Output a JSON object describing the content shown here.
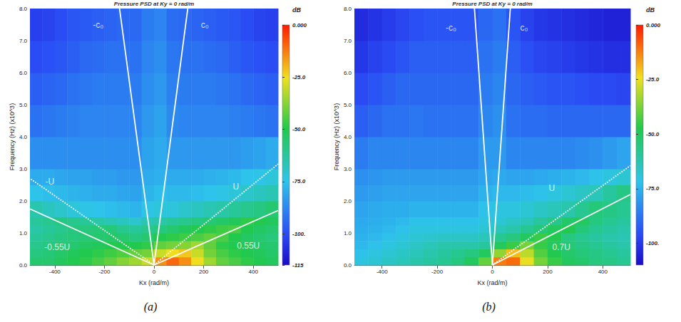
{
  "chart_data": [
    {
      "type": "heatmap",
      "title": "Pressure PSD at Ky = 0 rad/m",
      "caption": "(a)",
      "x_label": "Kx (rad/m)",
      "y_label": "Frequency (Hz) (x10^3)",
      "xlim": [
        -500,
        500
      ],
      "xticks": [
        -400,
        -200,
        0,
        200,
        400
      ],
      "ylim": [
        0,
        8
      ],
      "yticks": [
        {
          "value": 0,
          "label": "0.0"
        },
        {
          "value": 1,
          "label": "1.0"
        },
        {
          "value": 2,
          "label": "2.0"
        },
        {
          "value": 3,
          "label": "3.0"
        },
        {
          "value": 4,
          "label": "4.0"
        },
        {
          "value": 5,
          "label": "5.0"
        },
        {
          "value": 6,
          "label": "6.0"
        },
        {
          "value": 7,
          "label": "7.0"
        },
        {
          "value": 8,
          "label": "8.0"
        }
      ],
      "kx_bins": [
        -500,
        -450,
        -400,
        -350,
        -300,
        -250,
        -200,
        -150,
        -100,
        -50,
        0,
        50,
        100,
        150,
        200,
        250,
        300,
        350,
        400,
        450,
        500
      ],
      "freq_bins": [
        0,
        0.25,
        0.5,
        0.75,
        1,
        1.25,
        1.5,
        2,
        2.5,
        3,
        4,
        5,
        6,
        7,
        8
      ],
      "psd": [
        [
          -55,
          -55,
          -52,
          -50,
          -48,
          -45,
          -42,
          -38,
          -35,
          -30,
          -15,
          -10,
          -15,
          -25,
          -35,
          -42,
          -45,
          -48,
          -50,
          -52
        ],
        [
          -58,
          -56,
          -54,
          -52,
          -50,
          -48,
          -46,
          -44,
          -42,
          -40,
          -30,
          -25,
          -22,
          -30,
          -40,
          -45,
          -48,
          -50,
          -52,
          -54
        ],
        [
          -60,
          -58,
          -56,
          -55,
          -53,
          -52,
          -50,
          -50,
          -50,
          -48,
          -42,
          -40,
          -38,
          -35,
          -42,
          -48,
          -50,
          -52,
          -54,
          -55
        ],
        [
          -62,
          -60,
          -58,
          -57,
          -56,
          -55,
          -54,
          -55,
          -58,
          -55,
          -50,
          -48,
          -46,
          -45,
          -42,
          -45,
          -50,
          -53,
          -55,
          -57
        ],
        [
          -64,
          -62,
          -60,
          -58,
          -57,
          -56,
          -56,
          -60,
          -62,
          -60,
          -58,
          -55,
          -52,
          -50,
          -48,
          -46,
          -45,
          -50,
          -53,
          -55
        ],
        [
          -62,
          -60,
          -58,
          -60,
          -62,
          -64,
          -66,
          -68,
          -70,
          -66,
          -64,
          -62,
          -60,
          -58,
          -56,
          -54,
          -52,
          -48,
          -50,
          -52
        ],
        [
          -65,
          -68,
          -70,
          -72,
          -74,
          -75,
          -76,
          -77,
          -78,
          -74,
          -72,
          -72,
          -70,
          -68,
          -66,
          -64,
          -62,
          -60,
          -58,
          -55
        ],
        [
          -75,
          -76,
          -77,
          -78,
          -79,
          -80,
          -80,
          -81,
          -82,
          -78,
          -76,
          -77,
          -77,
          -76,
          -75,
          -74,
          -72,
          -70,
          -68,
          -66
        ],
        [
          -80,
          -80,
          -81,
          -82,
          -82,
          -83,
          -83,
          -84,
          -84,
          -80,
          -79,
          -80,
          -80,
          -80,
          -79,
          -78,
          -77,
          -75,
          -74,
          -72
        ],
        [
          -86,
          -86,
          -86,
          -86,
          -86,
          -86,
          -86,
          -86,
          -86,
          -82,
          -80,
          -84,
          -84,
          -84,
          -84,
          -84,
          -84,
          -83,
          -82,
          -80
        ],
        [
          -92,
          -91,
          -90,
          -89,
          -88,
          -88,
          -88,
          -88,
          -88,
          -84,
          -82,
          -87,
          -88,
          -88,
          -88,
          -88,
          -89,
          -90,
          -91,
          -92
        ],
        [
          -96,
          -95,
          -94,
          -92,
          -91,
          -90,
          -90,
          -90,
          -90,
          -86,
          -84,
          -89,
          -90,
          -90,
          -90,
          -91,
          -92,
          -94,
          -95,
          -96
        ],
        [
          -100,
          -99,
          -98,
          -96,
          -94,
          -93,
          -92,
          -92,
          -92,
          -88,
          -86,
          -91,
          -92,
          -92,
          -93,
          -94,
          -96,
          -98,
          -99,
          -100
        ],
        [
          -103,
          -102,
          -100,
          -98,
          -97,
          -96,
          -95,
          -94,
          -94,
          -90,
          -88,
          -93,
          -94,
          -95,
          -96,
          -97,
          -98,
          -100,
          -102,
          -103
        ]
      ],
      "colorbar": {
        "title": "dB",
        "range": [
          -115,
          0
        ],
        "ticks": [
          {
            "value": 0,
            "label": "0.000"
          },
          {
            "value": -25,
            "label": "-25.0"
          },
          {
            "value": -50,
            "label": "-50.0"
          },
          {
            "value": -75,
            "label": "-75.0"
          },
          {
            "value": -100,
            "label": "-100."
          },
          -115
        ]
      },
      "series": [
        {
          "name": "-c₀",
          "type": "line",
          "color": "#ffffff",
          "line_style": "solid",
          "x": [
            0,
            -139
          ],
          "values": [
            0,
            8
          ],
          "label_position": [
            -225,
            7.5
          ]
        },
        {
          "name": "c₀",
          "type": "line",
          "color": "#ffffff",
          "line_style": "solid",
          "x": [
            0,
            136
          ],
          "values": [
            0,
            8
          ],
          "label_position": [
            205,
            7.5
          ]
        },
        {
          "name": "-U",
          "type": "line",
          "color": "#ffffff",
          "line_style": "dotted",
          "x": [
            0,
            -500
          ],
          "values": [
            0,
            2.7
          ],
          "label_position": [
            -420,
            2.6
          ]
        },
        {
          "name": "U",
          "type": "line",
          "color": "#ffffff",
          "line_style": "dotted",
          "x": [
            0,
            500
          ],
          "values": [
            0,
            3.15
          ],
          "label_position": [
            330,
            2.45
          ]
        },
        {
          "name": "-0.55U",
          "type": "line",
          "color": "#ffffff",
          "line_style": "solid",
          "x": [
            0,
            -500
          ],
          "values": [
            0,
            1.75
          ],
          "label_position": [
            -390,
            0.55
          ]
        },
        {
          "name": "0.55U",
          "type": "line",
          "color": "#ffffff",
          "line_style": "solid",
          "x": [
            0,
            500
          ],
          "values": [
            0,
            1.7
          ],
          "label_position": [
            380,
            0.6
          ]
        }
      ]
    },
    {
      "type": "heatmap",
      "title": "Pressure PSD at Ky = 0 rad/m",
      "caption": "(b)",
      "x_label": "Kx (rad/m)",
      "y_label": "Frequency (Hz) (x10^3)",
      "xlim": [
        -500,
        500
      ],
      "xticks": [
        -400,
        -200,
        0,
        200,
        400
      ],
      "ylim": [
        0,
        8
      ],
      "yticks": [
        {
          "value": 0,
          "label": "0.0"
        },
        {
          "value": 1,
          "label": "1.0"
        },
        {
          "value": 2,
          "label": "2.0"
        },
        {
          "value": 3,
          "label": "3.0"
        },
        {
          "value": 4,
          "label": "4.0"
        },
        {
          "value": 5,
          "label": "5.0"
        },
        {
          "value": 6,
          "label": "6.0"
        },
        {
          "value": 7,
          "label": "7.0"
        },
        {
          "value": 8,
          "label": "8.0"
        }
      ],
      "kx_bins": [
        -500,
        -450,
        -400,
        -350,
        -300,
        -250,
        -200,
        -150,
        -100,
        -50,
        0,
        50,
        100,
        150,
        200,
        250,
        300,
        350,
        400,
        450,
        500
      ],
      "freq_bins": [
        0,
        0.25,
        0.5,
        0.75,
        1,
        1.25,
        1.5,
        2,
        2.5,
        3,
        4,
        5,
        6,
        7,
        8
      ],
      "psd": [
        [
          -70,
          -68,
          -66,
          -64,
          -62,
          -60,
          -58,
          -55,
          -50,
          -40,
          -12,
          -10,
          -25,
          -38,
          -45,
          -50,
          -52,
          -55,
          -56,
          -58
        ],
        [
          -72,
          -70,
          -68,
          -66,
          -64,
          -62,
          -60,
          -58,
          -55,
          -50,
          -35,
          -20,
          -30,
          -42,
          -48,
          -52,
          -54,
          -56,
          -58,
          -60
        ],
        [
          -74,
          -72,
          -70,
          -68,
          -66,
          -64,
          -62,
          -62,
          -62,
          -60,
          -50,
          -45,
          -38,
          -45,
          -50,
          -54,
          -56,
          -58,
          -60,
          -62
        ],
        [
          -75,
          -74,
          -72,
          -70,
          -68,
          -67,
          -66,
          -66,
          -66,
          -64,
          -58,
          -55,
          -50,
          -45,
          -48,
          -55,
          -58,
          -60,
          -62,
          -63
        ],
        [
          -76,
          -75,
          -74,
          -72,
          -70,
          -70,
          -70,
          -70,
          -70,
          -68,
          -64,
          -62,
          -58,
          -54,
          -50,
          -48,
          -54,
          -58,
          -60,
          -62
        ],
        [
          -77,
          -76,
          -75,
          -74,
          -72,
          -72,
          -72,
          -72,
          -72,
          -70,
          -68,
          -66,
          -64,
          -60,
          -57,
          -52,
          -50,
          -55,
          -58,
          -60
        ],
        [
          -78,
          -77,
          -76,
          -76,
          -75,
          -75,
          -75,
          -75,
          -75,
          -72,
          -70,
          -70,
          -68,
          -66,
          -64,
          -62,
          -58,
          -54,
          -56,
          -58
        ],
        [
          -80,
          -79,
          -78,
          -78,
          -78,
          -78,
          -78,
          -78,
          -78,
          -75,
          -74,
          -74,
          -73,
          -72,
          -70,
          -68,
          -66,
          -64,
          -60,
          -56
        ],
        [
          -82,
          -81,
          -80,
          -80,
          -80,
          -80,
          -80,
          -80,
          -80,
          -78,
          -77,
          -78,
          -78,
          -77,
          -76,
          -75,
          -74,
          -72,
          -70,
          -68
        ],
        [
          -86,
          -84,
          -84,
          -84,
          -84,
          -84,
          -84,
          -84,
          -84,
          -80,
          -80,
          -84,
          -84,
          -84,
          -84,
          -84,
          -83,
          -82,
          -80,
          -78
        ],
        [
          -92,
          -90,
          -88,
          -88,
          -87,
          -88,
          -88,
          -88,
          -88,
          -84,
          -82,
          -88,
          -89,
          -89,
          -90,
          -90,
          -90,
          -90,
          -90,
          -90
        ],
        [
          -96,
          -94,
          -92,
          -90,
          -90,
          -90,
          -90,
          -90,
          -90,
          -86,
          -84,
          -90,
          -92,
          -93,
          -94,
          -94,
          -95,
          -96,
          -96,
          -97
        ],
        [
          -100,
          -98,
          -96,
          -94,
          -92,
          -92,
          -92,
          -92,
          -92,
          -88,
          -86,
          -92,
          -95,
          -97,
          -98,
          -99,
          -100,
          -101,
          -102,
          -102
        ],
        [
          -103,
          -101,
          -99,
          -97,
          -95,
          -94,
          -94,
          -94,
          -94,
          -90,
          -88,
          -94,
          -98,
          -100,
          -101,
          -102,
          -103,
          -104,
          -105,
          -105
        ]
      ],
      "colorbar": {
        "title": "dB",
        "range": [
          -110,
          0
        ],
        "ticks": [
          {
            "value": 0,
            "label": "0.000"
          },
          {
            "value": -25,
            "label": "-25.0"
          },
          {
            "value": -50,
            "label": "-50.0"
          },
          {
            "value": -75,
            "label": "-75.0"
          },
          {
            "value": -100,
            "label": "-100."
          }
        ]
      },
      "series": [
        {
          "name": "-c₀",
          "type": "line",
          "color": "#ffffff",
          "line_style": "solid",
          "x": [
            0,
            -65
          ],
          "values": [
            0,
            8
          ],
          "label_position": [
            -150,
            7.4
          ]
        },
        {
          "name": "c₀",
          "type": "line",
          "color": "#ffffff",
          "line_style": "solid",
          "x": [
            0,
            65
          ],
          "values": [
            0,
            8
          ],
          "label_position": [
            115,
            7.4
          ]
        },
        {
          "name": "U",
          "type": "line",
          "color": "#ffffff",
          "line_style": "dotted",
          "x": [
            0,
            500
          ],
          "values": [
            0,
            3.1
          ],
          "label_position": [
            215,
            2.4
          ]
        },
        {
          "name": "0.7U",
          "type": "line",
          "color": "#ffffff",
          "line_style": "solid",
          "x": [
            0,
            500
          ],
          "values": [
            0,
            2.2
          ],
          "label_position": [
            250,
            0.55
          ]
        }
      ]
    }
  ]
}
